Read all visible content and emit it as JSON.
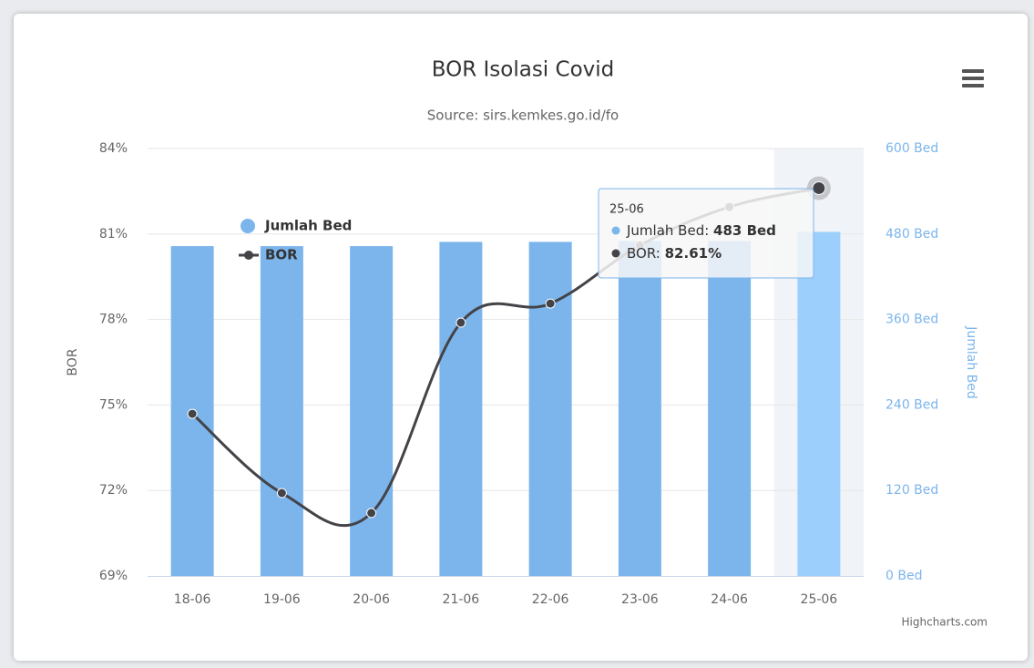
{
  "chart_data": {
    "type": "combo",
    "title": "BOR Isolasi Covid",
    "subtitle": "Source: sirs.kemkes.go.id/fo",
    "credits": "Highcharts.com",
    "categories": [
      "18-06",
      "19-06",
      "20-06",
      "21-06",
      "22-06",
      "23-06",
      "24-06",
      "25-06"
    ],
    "ylabel": "BOR",
    "y2label": "Jumlah Bed",
    "ylim": [
      69,
      84
    ],
    "yticks": [
      {
        "value": 69,
        "label": "69%"
      },
      {
        "value": 72,
        "label": "72%"
      },
      {
        "value": 75,
        "label": "75%"
      },
      {
        "value": 78,
        "label": "78%"
      },
      {
        "value": 81,
        "label": "81%"
      },
      {
        "value": 84,
        "label": "84%"
      }
    ],
    "y2lim": [
      0,
      600
    ],
    "y2ticks": [
      {
        "value": 0,
        "label": "0 Bed"
      },
      {
        "value": 120,
        "label": "120 Bed"
      },
      {
        "value": 240,
        "label": "240 Bed"
      },
      {
        "value": 360,
        "label": "360 Bed"
      },
      {
        "value": 480,
        "label": "480 Bed"
      },
      {
        "value": 600,
        "label": "600 Bed"
      }
    ],
    "grid": true,
    "legend": "upper left",
    "series": [
      {
        "name": "Jumlah Bed",
        "type": "bar",
        "axis": "y2",
        "color": "#7cb5ec",
        "values": [
          463,
          463,
          463,
          469,
          469,
          470,
          470,
          483
        ],
        "value_labels": [
          null,
          null,
          null,
          null,
          null,
          null,
          null,
          "483 Bed"
        ]
      },
      {
        "name": "BOR",
        "type": "line",
        "color": "#434348",
        "values": [
          74.69,
          71.91,
          71.21,
          77.89,
          78.56,
          80.6,
          81.95,
          82.61
        ],
        "value_labels": [
          null,
          null,
          null,
          null,
          null,
          null,
          null,
          "82.61%"
        ]
      }
    ],
    "highlight": 7
  }
}
